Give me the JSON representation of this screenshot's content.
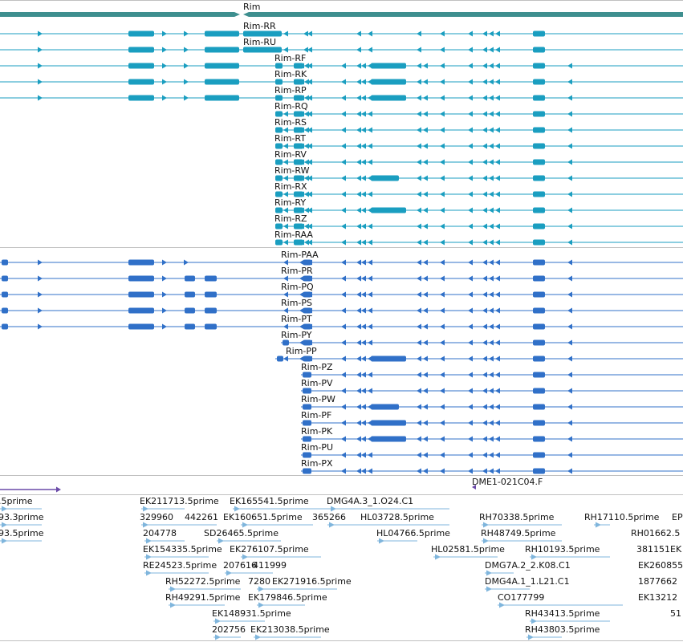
{
  "gene": {
    "name": "Rim"
  },
  "colors": {
    "gene": "#3e8f8f",
    "groupA": "#1a9ec0",
    "groupB": "#3070c8",
    "est": "#7fb5dc",
    "probe": "#6a4aa8",
    "divider": "#c0c0c0"
  },
  "transcriptsA": [
    {
      "name": "Rim-RR"
    },
    {
      "name": "Rim-RU"
    },
    {
      "name": "Rim-RF"
    },
    {
      "name": "Rim-RK"
    },
    {
      "name": "Rim-RP"
    },
    {
      "name": "Rim-RQ"
    },
    {
      "name": "Rim-RS"
    },
    {
      "name": "Rim-RT"
    },
    {
      "name": "Rim-RV"
    },
    {
      "name": "Rim-RW"
    },
    {
      "name": "Rim-RX"
    },
    {
      "name": "Rim-RY"
    },
    {
      "name": "Rim-RZ"
    },
    {
      "name": "Rim-RAA"
    }
  ],
  "transcriptsB": [
    {
      "name": "Rim-PAA"
    },
    {
      "name": "Rim-PR"
    },
    {
      "name": "Rim-PQ"
    },
    {
      "name": "Rim-PS"
    },
    {
      "name": "Rim-PT"
    },
    {
      "name": "Rim-PY"
    },
    {
      "name": "Rim-PP"
    },
    {
      "name": "Rim-PZ"
    },
    {
      "name": "Rim-PV"
    },
    {
      "name": "Rim-PW"
    },
    {
      "name": "Rim-PF"
    },
    {
      "name": "Rim-PK"
    },
    {
      "name": "Rim-PU"
    },
    {
      "name": "Rim-PX"
    }
  ],
  "probe": {
    "name": "DME1-021C04.F"
  },
  "ests": [
    {
      "name": ".5prime"
    },
    {
      "name": "93.3prime"
    },
    {
      "name": "93.5prime"
    },
    {
      "name": "EK211713.5prime"
    },
    {
      "name": "EK165541.5prime"
    },
    {
      "name": "DMG4A.3_1.O24.C1"
    },
    {
      "name": "329960"
    },
    {
      "name": "442261"
    },
    {
      "name": "EK160651.5prime"
    },
    {
      "name": "365266"
    },
    {
      "name": "HL03728.5prime"
    },
    {
      "name": "RH70338.5prime"
    },
    {
      "name": "RH17110.5prime"
    },
    {
      "name": "EP"
    },
    {
      "name": "204778"
    },
    {
      "name": "SD26465.5prime"
    },
    {
      "name": "HL04766.5prime"
    },
    {
      "name": "RH48749.5prime"
    },
    {
      "name": "RH01662.5"
    },
    {
      "name": "EK154335.5prime"
    },
    {
      "name": "EK276107.5prime"
    },
    {
      "name": "HL02581.5prime"
    },
    {
      "name": "RH10193.5prime"
    },
    {
      "name": "381151EK"
    },
    {
      "name": "RE24523.5prime"
    },
    {
      "name": "207616"
    },
    {
      "name": "411999"
    },
    {
      "name": "DMG7A.2_2.K08.C1"
    },
    {
      "name": "EK260855"
    },
    {
      "name": "RH52272.5prime"
    },
    {
      "name": "7280"
    },
    {
      "name": "EK271916.5prime"
    },
    {
      "name": "DMG4A.1_1.L21.C1"
    },
    {
      "name": "1877662"
    },
    {
      "name": "RH49291.5prime"
    },
    {
      "name": "EK179846.5prime"
    },
    {
      "name": "CO177799"
    },
    {
      "name": "EK13212"
    },
    {
      "name": "EK148931.5prime"
    },
    {
      "name": "RH43413.5prime"
    },
    {
      "name": "51"
    },
    {
      "name": "202756"
    },
    {
      "name": "EK213038.5prime"
    },
    {
      "name": "RH43803.5prime"
    }
  ]
}
